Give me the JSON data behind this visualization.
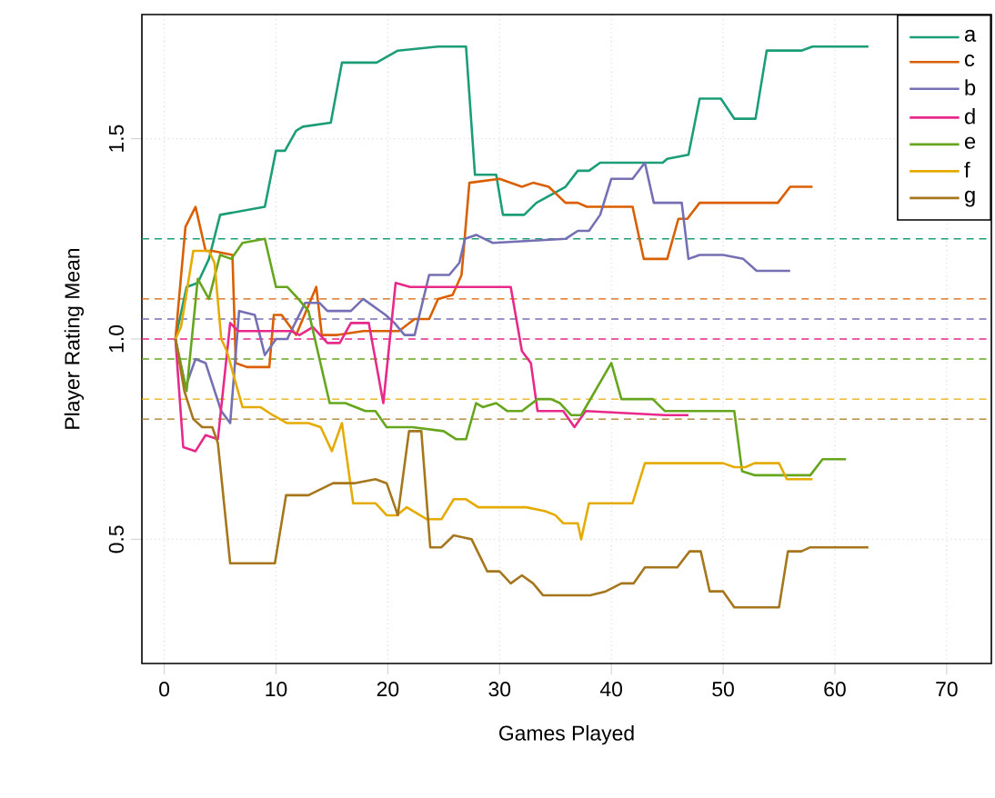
{
  "chart_data": {
    "type": "line",
    "xlabel": "Games Played",
    "ylabel": "Player Rating Mean",
    "xlim": [
      -2,
      74
    ],
    "ylim": [
      0.19,
      1.81
    ],
    "xticks": [
      0,
      10,
      20,
      30,
      40,
      50,
      60,
      70
    ],
    "yticks": [
      {
        "value": 0.5,
        "label": "0.5"
      },
      {
        "value": 1.0,
        "label": "1.0"
      },
      {
        "value": 1.5,
        "label": "1.5"
      }
    ],
    "grid": true,
    "legend": "top right",
    "series": [
      {
        "name": "a",
        "color": "#1b9e77",
        "x": [
          1,
          2,
          3,
          4,
          5,
          9,
          10,
          10.8,
          11.8,
          12.4,
          14.9,
          15.9,
          19,
          20.9,
          24.5,
          27,
          27.8,
          29.7,
          30.3,
          32.2,
          33.3,
          35.9,
          37,
          38,
          39,
          44.6,
          45,
          46.9,
          47.9,
          49.8,
          51,
          52.9,
          53.9,
          57,
          58,
          63
        ],
        "values": [
          1.0,
          1.13,
          1.14,
          1.2,
          1.31,
          1.33,
          1.47,
          1.47,
          1.52,
          1.53,
          1.54,
          1.69,
          1.69,
          1.72,
          1.73,
          1.73,
          1.41,
          1.41,
          1.31,
          1.31,
          1.34,
          1.38,
          1.42,
          1.42,
          1.44,
          1.44,
          1.45,
          1.46,
          1.6,
          1.6,
          1.55,
          1.55,
          1.72,
          1.72,
          1.73,
          1.73
        ]
      },
      {
        "name": "c",
        "color": "#d95f02",
        "x": [
          1,
          1.9,
          2.8,
          3.7,
          4.3,
          6.1,
          6.4,
          7.4,
          9.4,
          9.8,
          10.5,
          11.8,
          13.6,
          14.1,
          15.5,
          17.8,
          21,
          22.4,
          23.7,
          24.5,
          25.8,
          26.6,
          27.3,
          30,
          32,
          33,
          34.4,
          35.9,
          37,
          37.8,
          40.2,
          41.9,
          42.9,
          45,
          46,
          46.8,
          47.9,
          54.9,
          56,
          58
        ],
        "values": [
          1.0,
          1.28,
          1.33,
          1.22,
          1.22,
          1.21,
          0.94,
          0.93,
          0.93,
          1.06,
          1.06,
          1.01,
          1.13,
          1.01,
          1.01,
          1.02,
          1.02,
          1.05,
          1.05,
          1.1,
          1.11,
          1.16,
          1.39,
          1.4,
          1.38,
          1.39,
          1.38,
          1.34,
          1.34,
          1.33,
          1.33,
          1.33,
          1.2,
          1.2,
          1.3,
          1.3,
          1.34,
          1.34,
          1.38,
          1.38
        ]
      },
      {
        "name": "b",
        "color": "#7570b3",
        "x": [
          1,
          1.9,
          2.8,
          3.7,
          5.1,
          5.9,
          6.7,
          8.1,
          9,
          10,
          11,
          12.6,
          13.9,
          14.6,
          16.7,
          17.8,
          19.8,
          20.6,
          21.5,
          22.4,
          23.7,
          25.5,
          26.4,
          26.9,
          27.9,
          29.4,
          35.9,
          37,
          38,
          39,
          40,
          41.9,
          43,
          43.8,
          46.3,
          46.9,
          47.9,
          50,
          51.8,
          53,
          56
        ],
        "values": [
          1.0,
          0.88,
          0.95,
          0.94,
          0.82,
          0.79,
          1.07,
          1.06,
          0.96,
          1.0,
          1.0,
          1.09,
          1.09,
          1.07,
          1.07,
          1.1,
          1.06,
          1.04,
          1.01,
          1.01,
          1.16,
          1.16,
          1.19,
          1.25,
          1.26,
          1.24,
          1.25,
          1.27,
          1.27,
          1.31,
          1.4,
          1.4,
          1.44,
          1.34,
          1.34,
          1.2,
          1.21,
          1.21,
          1.2,
          1.17,
          1.17
        ]
      },
      {
        "name": "d",
        "color": "#e7298a",
        "x": [
          1,
          1.7,
          2.8,
          3.7,
          4.8,
          5.9,
          6.6,
          11.3,
          12.1,
          13.3,
          14.6,
          15.7,
          16.7,
          18.3,
          19.6,
          20.7,
          22,
          27.6,
          31,
          32,
          32.8,
          33.4,
          35.7,
          36.7,
          37.7,
          44.8,
          46.9
        ],
        "values": [
          1.0,
          0.73,
          0.72,
          0.76,
          0.75,
          1.04,
          1.02,
          1.02,
          1.01,
          1.03,
          0.99,
          0.99,
          1.04,
          1.04,
          0.84,
          1.14,
          1.13,
          1.13,
          1.13,
          0.97,
          0.94,
          0.82,
          0.82,
          0.78,
          0.82,
          0.81,
          0.81
        ]
      },
      {
        "name": "e",
        "color": "#66a61e",
        "x": [
          1,
          2,
          3,
          4,
          5,
          6,
          7,
          9,
          10,
          11,
          12,
          12.9,
          14.8,
          16.2,
          18,
          18.9,
          19.9,
          22.2,
          25,
          26.1,
          27,
          27.9,
          28.5,
          29.7,
          30.7,
          32,
          33.4,
          34.6,
          35.4,
          36.4,
          37.3,
          40,
          40.9,
          43.7,
          44.8,
          51,
          51.7,
          52.8,
          57.8,
          58.9,
          61
        ],
        "values": [
          1.0,
          0.87,
          1.15,
          1.1,
          1.21,
          1.2,
          1.24,
          1.25,
          1.13,
          1.13,
          1.1,
          1.07,
          0.84,
          0.84,
          0.82,
          0.82,
          0.78,
          0.78,
          0.77,
          0.75,
          0.75,
          0.84,
          0.83,
          0.84,
          0.82,
          0.82,
          0.85,
          0.85,
          0.84,
          0.81,
          0.81,
          0.94,
          0.85,
          0.85,
          0.82,
          0.82,
          0.67,
          0.66,
          0.66,
          0.7,
          0.7
        ]
      },
      {
        "name": "f",
        "color": "#e6ab02",
        "x": [
          1,
          1.5,
          2.6,
          4,
          4.5,
          5.1,
          5.6,
          7,
          8.6,
          9.7,
          11,
          12.9,
          14,
          15,
          15.9,
          16.9,
          18.9,
          19.9,
          20.8,
          21.7,
          23.5,
          24.8,
          25.9,
          27,
          28.1,
          32.4,
          34.1,
          35,
          35.7,
          37,
          37.3,
          38,
          41.9,
          43,
          50,
          51,
          52,
          52.8,
          55,
          55.7,
          58
        ],
        "values": [
          1.0,
          1.03,
          1.22,
          1.22,
          1.19,
          1.0,
          0.97,
          0.83,
          0.83,
          0.81,
          0.79,
          0.79,
          0.78,
          0.72,
          0.79,
          0.59,
          0.59,
          0.56,
          0.56,
          0.58,
          0.55,
          0.55,
          0.6,
          0.6,
          0.58,
          0.58,
          0.57,
          0.56,
          0.54,
          0.54,
          0.5,
          0.59,
          0.59,
          0.69,
          0.69,
          0.68,
          0.68,
          0.69,
          0.69,
          0.65,
          0.65
        ]
      },
      {
        "name": "g",
        "color": "#a6761d",
        "x": [
          1,
          1.8,
          2.6,
          3.4,
          4.3,
          4.8,
          5.9,
          9.9,
          10.9,
          12.9,
          15.1,
          17,
          18.9,
          19.9,
          20.9,
          21.9,
          23,
          23.8,
          24.8,
          25.9,
          27.5,
          28.9,
          30,
          31,
          32,
          33,
          33.9,
          38.1,
          39.5,
          40.9,
          42,
          43,
          45.9,
          47,
          48,
          48.8,
          50,
          51,
          55,
          55.8,
          57,
          57.8,
          63
        ],
        "values": [
          1.0,
          0.87,
          0.8,
          0.78,
          0.78,
          0.74,
          0.44,
          0.44,
          0.61,
          0.61,
          0.64,
          0.64,
          0.65,
          0.64,
          0.56,
          0.77,
          0.77,
          0.48,
          0.48,
          0.51,
          0.5,
          0.42,
          0.42,
          0.39,
          0.41,
          0.39,
          0.36,
          0.36,
          0.37,
          0.39,
          0.39,
          0.43,
          0.43,
          0.47,
          0.47,
          0.37,
          0.37,
          0.33,
          0.33,
          0.47,
          0.47,
          0.48,
          0.48
        ]
      }
    ],
    "ref_lines": [
      {
        "axis": "y",
        "value": 1.25,
        "color": "#1b9e77",
        "line_style": "dashed"
      },
      {
        "axis": "y",
        "value": 1.1,
        "color": "#d95f02",
        "line_style": "dashed"
      },
      {
        "axis": "y",
        "value": 1.05,
        "color": "#7570b3",
        "line_style": "dashed"
      },
      {
        "axis": "y",
        "value": 1.0,
        "color": "#e7298a",
        "line_style": "dashed"
      },
      {
        "axis": "y",
        "value": 0.95,
        "color": "#66a61e",
        "line_style": "dashed"
      },
      {
        "axis": "y",
        "value": 0.85,
        "color": "#e6ab02",
        "line_style": "dashed"
      },
      {
        "axis": "y",
        "value": 0.8,
        "color": "#a6761d",
        "line_style": "dashed"
      }
    ]
  }
}
